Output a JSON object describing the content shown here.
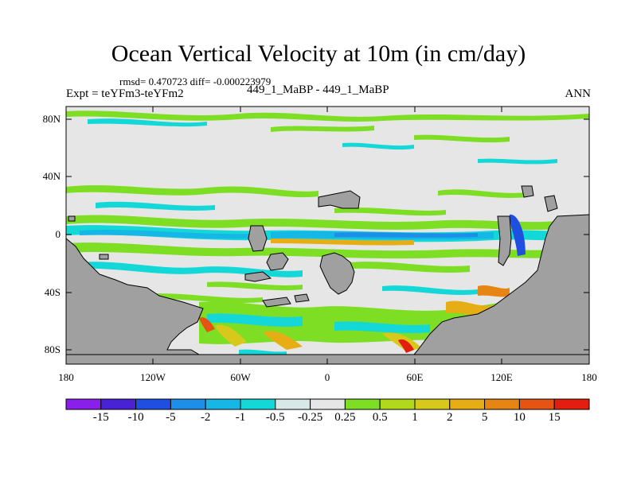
{
  "title": "Ocean Vertical Velocity at 10m (in cm/day)",
  "stats": "rmsd= 0.470723 diff= -0.000223979",
  "expt": "Expt = teYFm3-teYFm2",
  "subtitle": "449_1_MaBP - 449_1_MaBP",
  "season": "ANN",
  "y_ticks": [
    "80N",
    "40N",
    "0",
    "40S",
    "80S"
  ],
  "x_ticks": [
    "180",
    "120W",
    "60W",
    "0",
    "60E",
    "120E",
    "180"
  ],
  "colorbar": {
    "labels": [
      "-15",
      "-10",
      "-5",
      "-2",
      "-1",
      "-0.5",
      "-0.25",
      "0.25",
      "0.5",
      "1",
      "2",
      "5",
      "10",
      "15"
    ],
    "colors": [
      "#8a1eeb",
      "#4a22d6",
      "#1e4fe0",
      "#1e8fe8",
      "#16b6e6",
      "#14d8d8",
      "#d8e8e8",
      "#e6e6e6",
      "#7ede24",
      "#b2d81c",
      "#d8c81c",
      "#e6ae14",
      "#e68414",
      "#e65414",
      "#e41e0e"
    ]
  },
  "colors": {
    "land": "#a0a0a0",
    "background": "#e6e6e6"
  }
}
